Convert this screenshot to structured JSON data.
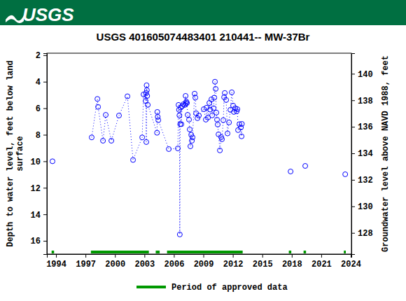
{
  "header": {
    "logo": "USGS",
    "color": "#006f41"
  },
  "chart_data": {
    "type": "scatter",
    "title": "USGS 401605074483401 210441-- MW-37Br",
    "ylabel": [
      "Depth to water level, feet below land",
      "surface"
    ],
    "y2label": "Groundwater level above NAVD 1988, feet",
    "xlim": [
      1993.07,
      2024.07
    ],
    "xticks": [
      1994,
      1997,
      2000,
      2003,
      2006,
      2009,
      2012,
      2015,
      2018,
      2021,
      2024
    ],
    "ylim": [
      17,
      1.85
    ],
    "yticks": [
      2,
      4,
      6,
      8,
      10,
      12,
      14,
      16
    ],
    "y2lim": [
      126.4,
      141.55
    ],
    "y2ticks": [
      128,
      130,
      132,
      134,
      136,
      138,
      140
    ],
    "series": [
      {
        "color": "#0000ff",
        "marker": "circle",
        "line_style": "dotted",
        "x": [
          1993.64,
          null,
          1997.63,
          1998.21,
          1998.28,
          1998.78,
          1999.06,
          1999.63,
          2000.41,
          2001.27,
          2001.84,
          2002.77,
          2002.91,
          2003.12,
          2003.17,
          2003.19,
          2003.22,
          2003.25,
          2003.28,
          2003.34,
          2004.28,
          2004.31,
          2004.35,
          2004.41,
          2005.48,
          2006.4,
          2006.47,
          2006.52,
          2006.56,
          2006.6,
          2006.64,
          2006.69,
          2006.76,
          2006.83,
          2006.97,
          2007.11,
          2007.19,
          2007.22,
          2007.26,
          2007.33,
          2007.4,
          2007.54,
          2007.61,
          2007.68,
          2007.76,
          2007.83,
          2007.9,
          2008.11,
          2008.18,
          2008.26,
          2008.4,
          2008.54,
          2009.04,
          2009.25,
          2009.32,
          2009.47,
          2009.61,
          2009.68,
          2009.82,
          2009.89,
          2010.04,
          2010.11,
          2010.18,
          2010.25,
          2010.32,
          2010.39,
          2010.46,
          2010.54,
          2010.68,
          2010.82,
          2010.89,
          2011.03,
          2011.11,
          2011.18,
          2011.32,
          2011.46,
          2011.61,
          2011.75,
          2011.89,
          2012.03,
          2012.1,
          2012.25,
          2012.39,
          2012.46,
          2012.53,
          2012.67,
          2012.82,
          2012.89,
          2012.92,
          null,
          2017.88,
          null,
          2019.37,
          null,
          2023.44
        ],
        "values": [
          10.0,
          null,
          8.2,
          5.3,
          5.9,
          8.45,
          6.5,
          8.45,
          6.55,
          5.1,
          9.9,
          8.2,
          4.96,
          5.45,
          4.85,
          8.55,
          4.27,
          4.64,
          5.07,
          5.75,
          7.85,
          6.28,
          6.65,
          6.9,
          9.08,
          9.03,
          5.75,
          6.12,
          6.54,
          15.52,
          7.2,
          5.95,
          7.2,
          5.85,
          5.7,
          5.75,
          5.07,
          5.65,
          5.5,
          5.6,
          6.5,
          6.86,
          7.6,
          8.87,
          8.0,
          8.45,
          8.2,
          4.9,
          5.2,
          6.38,
          6.75,
          6.55,
          6.07,
          6.86,
          5.96,
          6.7,
          5.6,
          6.1,
          5.33,
          6.54,
          6.0,
          5.2,
          4.0,
          4.54,
          6.33,
          6.86,
          7.23,
          7.97,
          9.18,
          8.18,
          8.34,
          6.9,
          5.17,
          4.85,
          5.38,
          7.9,
          7.07,
          6.12,
          4.8,
          5.8,
          6.28,
          6.0,
          6.23,
          6.07,
          7.65,
          7.2,
          7.45,
          8.12,
          7.18,
          null,
          10.77,
          null,
          10.35,
          null,
          10.98
        ]
      },
      {
        "name": "Period of approved data",
        "type": "period",
        "color": "#009900",
        "x": [
          [
            1993.55,
            1993.8
          ],
          [
            1997.55,
            2003.45
          ],
          [
            2004.15,
            2004.55
          ],
          [
            2005.3,
            2013.0
          ],
          [
            2017.7,
            2017.95
          ],
          [
            2019.2,
            2019.45
          ],
          [
            2023.3,
            2023.5
          ]
        ]
      }
    ]
  }
}
